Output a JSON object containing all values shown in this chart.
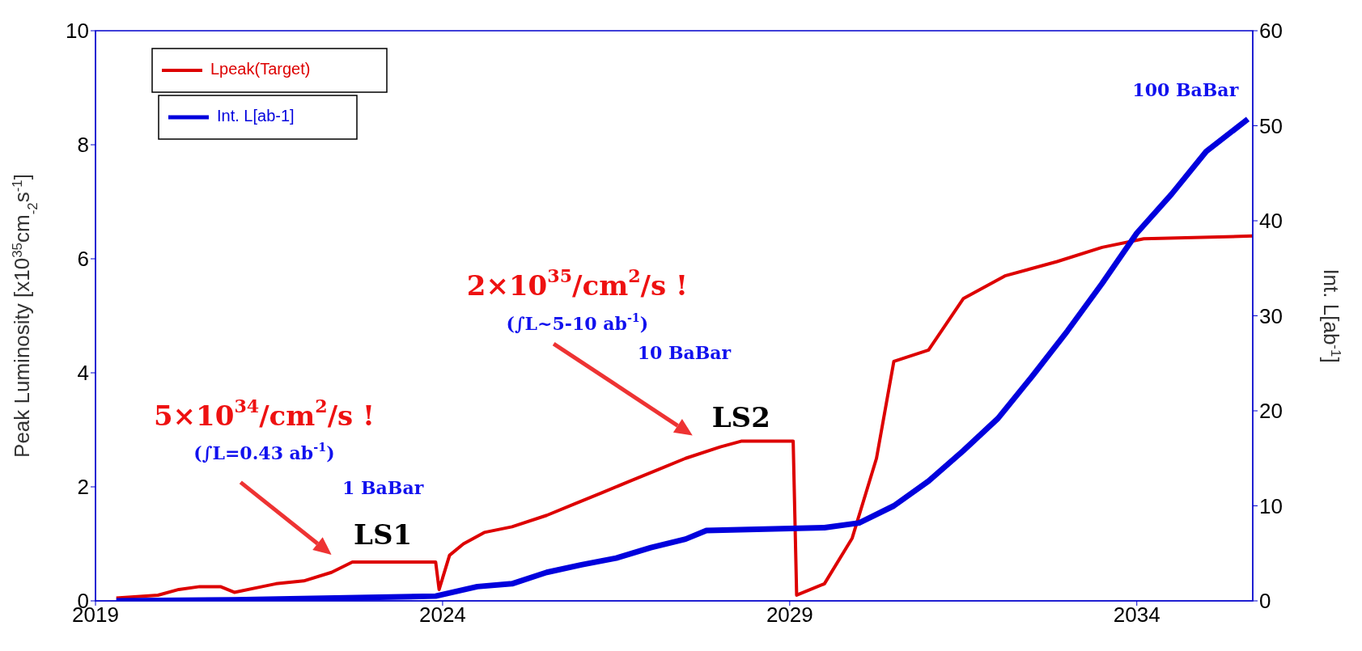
{
  "chart_data": {
    "type": "line",
    "xlim": [
      2019,
      2035.67
    ],
    "xticks": [
      2019,
      2024,
      2029,
      2034
    ],
    "ylim": [
      0,
      10
    ],
    "yticks": [
      0,
      2,
      4,
      6,
      8,
      10
    ],
    "y2lim": [
      0,
      60
    ],
    "y2ticks": [
      0,
      10,
      20,
      30,
      40,
      50,
      60
    ],
    "ylabel": "Peak Luminosity [x10$^{35}$cm$_{-2}$s$^{-1}$]",
    "y2label": "Int. L[ab$^{-1}$]",
    "grid": false,
    "legend": "top left",
    "marker": "none",
    "line_style": "solid",
    "series": [
      {
        "name": "Lpeak(Target)",
        "color": "#dd0000",
        "x": [
          2019.3,
          2019.9,
          2020.2,
          2020.5,
          2020.8,
          2021.0,
          2021.4,
          2021.6,
          2022.0,
          2022.4,
          2022.7,
          2023.9,
          2023.95,
          2024.1,
          2024.3,
          2024.6,
          2025.0,
          2025.5,
          2025.9,
          2026.3,
          2026.7,
          2027.1,
          2027.5,
          2028.0,
          2028.3,
          2029.05,
          2029.1,
          2029.5,
          2029.9,
          2030.25,
          2030.5,
          2031.0,
          2031.5,
          2032.1,
          2032.85,
          2033.5,
          2034.1,
          2035.67
        ],
        "values": [
          0.05,
          0.1,
          0.2,
          0.25,
          0.25,
          0.15,
          0.25,
          0.3,
          0.35,
          0.5,
          0.68,
          0.68,
          0.2,
          0.8,
          1.0,
          1.2,
          1.3,
          1.5,
          1.7,
          1.9,
          2.1,
          2.3,
          2.5,
          2.7,
          2.8,
          2.8,
          0.1,
          0.3,
          1.1,
          2.5,
          4.2,
          4.4,
          5.3,
          5.7,
          5.95,
          6.2,
          6.35,
          6.4
        ]
      },
      {
        "name": "Int. L[ab-1]",
        "color": "#0000dd",
        "axis": "y2",
        "x": [
          2019.3,
          2021.0,
          2023.9,
          2024.5,
          2025.0,
          2025.5,
          2026.0,
          2026.5,
          2027.0,
          2027.5,
          2027.8,
          2029.5,
          2030.0,
          2030.5,
          2031.0,
          2031.5,
          2032.0,
          2032.5,
          2033.0,
          2033.5,
          2034.0,
          2034.5,
          2035.0,
          2035.6
        ],
        "values": [
          0,
          0.1,
          0.5,
          1.5,
          1.8,
          3,
          3.8,
          4.5,
          5.6,
          6.5,
          7.4,
          7.7,
          8.2,
          10,
          12.6,
          15.8,
          19.2,
          23.7,
          28.4,
          33.4,
          38.7,
          42.8,
          47.3,
          50.7
        ]
      }
    ],
    "annotations": [
      "5×10$^{34}$/cm$^{2}$/s !",
      "(∫L=0.43 ab$^{-1}$)",
      "1 BaBar",
      "LS1",
      "2×10$^{35}$/cm$^{2}$/s !",
      "(∫L~5-10 ab$^{-1}$)",
      "10 BaBar",
      "LS2",
      "100 BaBar"
    ]
  }
}
